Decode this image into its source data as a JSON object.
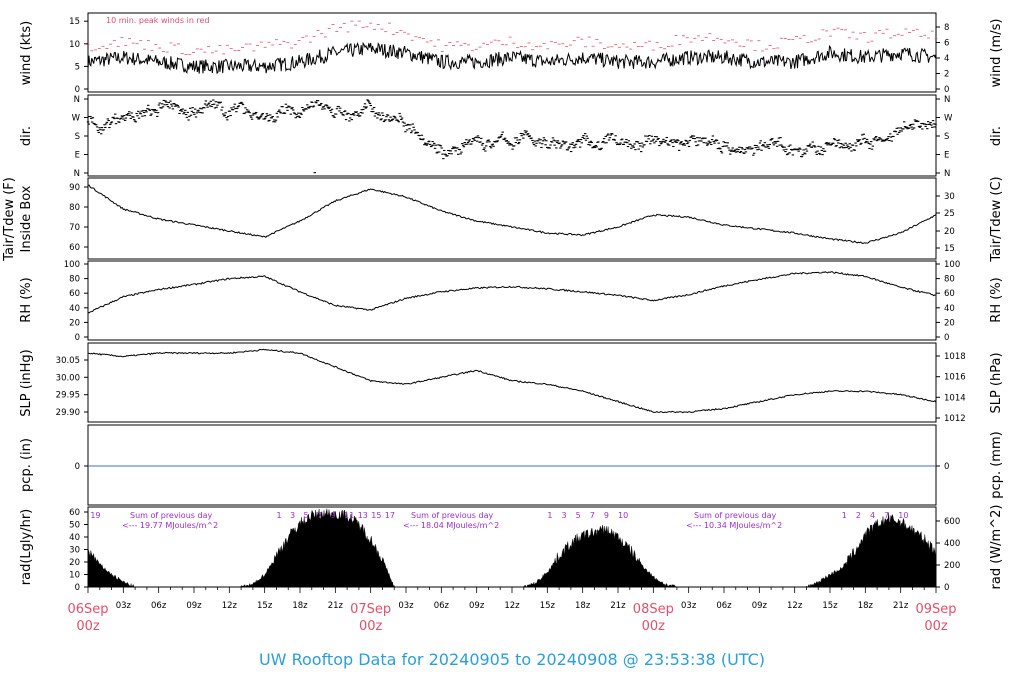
{
  "figure": {
    "title": "UW Rooftop Data for 20240905  to  20240908 @ 23:53:38  (UTC)",
    "title_color": "#2b9fd6",
    "date_color": "#e0506a",
    "purple": "#9a2fc7",
    "peak_color": "#e0506a",
    "pcp_color": "#3a6fd8"
  },
  "time_axis": {
    "hour_ticks": [
      "03z",
      "06z",
      "09z",
      "12z",
      "15z",
      "18z",
      "21z",
      "03z",
      "06z",
      "09z",
      "12z",
      "15z",
      "18z",
      "21z",
      "03z",
      "06z",
      "09z",
      "12z",
      "15z",
      "18z",
      "21z"
    ],
    "date_labels": [
      {
        "date": "06Sep",
        "z": "00z"
      },
      {
        "date": "07Sep",
        "z": "00z"
      },
      {
        "date": "08Sep",
        "z": "00z"
      },
      {
        "date": "09Sep",
        "z": "00z"
      }
    ]
  },
  "panels": {
    "wind": {
      "left_label": "wind (kts)",
      "right_label": "wind (m/s)",
      "annotation": "10 min. peak winds in red",
      "left_ticks": [
        "0",
        "5",
        "10",
        "15"
      ],
      "right_ticks": [
        "0",
        "2",
        "4",
        "6",
        "8"
      ]
    },
    "dir": {
      "left_label": "dir.",
      "right_label": "dir.",
      "left_ticks": [
        "N",
        "E",
        "S",
        "W",
        "N"
      ],
      "right_ticks": [
        "N",
        "E",
        "S",
        "W",
        "N"
      ]
    },
    "temp": {
      "left_label_1": "Tair/Tdew (F)",
      "left_label_2": "Inside Box",
      "right_label": "Tair/Tdew (C)",
      "left_ticks": [
        "60",
        "70",
        "80",
        "90"
      ],
      "right_ticks": [
        "15",
        "20",
        "25",
        "30"
      ]
    },
    "rh": {
      "left_label": "RH (%)",
      "right_label": "RH (%)",
      "left_ticks": [
        "0",
        "20",
        "40",
        "60",
        "80",
        "100"
      ],
      "right_ticks": [
        "0",
        "20",
        "40",
        "60",
        "80",
        "100"
      ]
    },
    "slp": {
      "left_label": "SLP (inHg)",
      "right_label": "SLP (hPa)",
      "left_ticks": [
        "29.90",
        "29.95",
        "30.00",
        "30.05"
      ],
      "right_ticks": [
        "1012",
        "1014",
        "1016",
        "1018"
      ]
    },
    "pcp": {
      "left_label": "pcp. (in)",
      "right_label": "pcp. (mm)",
      "left_ticks": [
        "0"
      ],
      "right_ticks": [
        "0"
      ]
    },
    "rad": {
      "left_label": "rad(Lgly/hr)",
      "right_label": "rad (W/m^2)",
      "left_ticks": [
        "0",
        "10",
        "20",
        "30",
        "40",
        "50",
        "60"
      ],
      "right_ticks": [
        "0",
        "200",
        "400",
        "600"
      ],
      "sums": [
        {
          "title": "Sum of previous day",
          "value": "<--- 19.77 MJoules/m^2"
        },
        {
          "title": "Sum of previous day",
          "value": "<--- 18.04 MJoules/m^2"
        },
        {
          "title": "Sum of previous day",
          "value": "<--- 10.34 MJoules/m^2"
        }
      ],
      "hour_labels": [
        [
          "19"
        ],
        [
          "1",
          "3",
          "5",
          "7",
          "9",
          "11",
          "13",
          "15",
          "17"
        ],
        [
          "1",
          "3",
          "5",
          "7",
          "9",
          "10"
        ],
        [
          "1",
          "2",
          "4",
          "7",
          "10"
        ]
      ]
    }
  },
  "chart_data": {
    "type": "line",
    "title": "UW Rooftop Data for 20240905  to  20240908 @ 23:53:38  (UTC)",
    "x_unit": "hours since 06Sep 00z",
    "xlim": [
      0,
      72
    ],
    "grid": false,
    "series": [
      {
        "panel": "wind",
        "ylabel": "wind (kts)",
        "ylim": [
          0,
          17
        ],
        "x": [
          0,
          3,
          6,
          9,
          12,
          15,
          18,
          21,
          24,
          27,
          30,
          33,
          36,
          39,
          42,
          45,
          48,
          51,
          54,
          57,
          60,
          63,
          66,
          69,
          72
        ],
        "values": [
          6,
          7,
          6,
          5,
          5,
          5,
          6,
          8,
          9,
          8,
          6,
          6,
          7,
          6,
          7,
          6,
          6,
          7,
          7,
          6,
          6,
          8,
          7,
          8,
          7
        ]
      },
      {
        "panel": "wind",
        "name": "10 min. peak winds in red",
        "ylabel": "wind (kts)",
        "x": [
          0,
          3,
          6,
          9,
          12,
          15,
          18,
          21,
          24,
          27,
          30,
          33,
          36,
          39,
          42,
          45,
          48,
          51,
          54,
          57,
          60,
          63,
          66,
          69,
          72
        ],
        "values": [
          9,
          10,
          9,
          8,
          8,
          9,
          10,
          13,
          14,
          12,
          9,
          9,
          10,
          9,
          10,
          9,
          9,
          11,
          11,
          9,
          10,
          12,
          11,
          12,
          11
        ]
      },
      {
        "panel": "temp",
        "ylabel": "Tair/Tdew (F)",
        "ylim": [
          55,
          95
        ],
        "x": [
          0,
          3,
          6,
          9,
          12,
          15,
          18,
          21,
          24,
          27,
          30,
          33,
          36,
          39,
          42,
          45,
          48,
          51,
          54,
          57,
          60,
          63,
          66,
          69,
          72
        ],
        "values": [
          91,
          79,
          74,
          71,
          68,
          65,
          73,
          83,
          89,
          85,
          78,
          73,
          70,
          67,
          66,
          70,
          76,
          75,
          71,
          69,
          67,
          64,
          62,
          67,
          76
        ]
      },
      {
        "panel": "rh",
        "ylabel": "RH (%)",
        "ylim": [
          0,
          100
        ],
        "x": [
          0,
          3,
          6,
          9,
          12,
          15,
          18,
          21,
          24,
          27,
          30,
          33,
          36,
          39,
          42,
          45,
          48,
          51,
          54,
          57,
          60,
          63,
          66,
          69,
          72
        ],
        "values": [
          33,
          55,
          65,
          72,
          80,
          83,
          62,
          43,
          37,
          53,
          62,
          67,
          69,
          66,
          62,
          57,
          50,
          58,
          70,
          79,
          87,
          89,
          83,
          68,
          57
        ]
      },
      {
        "panel": "slp",
        "ylabel": "SLP (inHg)",
        "ylim": [
          29.87,
          30.09
        ],
        "x": [
          0,
          3,
          6,
          9,
          12,
          15,
          18,
          21,
          24,
          27,
          30,
          33,
          36,
          39,
          42,
          45,
          48,
          51,
          54,
          57,
          60,
          63,
          66,
          69,
          72
        ],
        "values": [
          30.07,
          30.06,
          30.07,
          30.07,
          30.07,
          30.08,
          30.07,
          30.03,
          29.99,
          29.98,
          30.0,
          30.02,
          29.99,
          29.98,
          29.96,
          29.93,
          29.9,
          29.9,
          29.91,
          29.93,
          29.95,
          29.96,
          29.96,
          29.95,
          29.93
        ]
      },
      {
        "panel": "pcp",
        "ylabel": "pcp. (in)",
        "x": [
          0,
          72
        ],
        "values": [
          0,
          0
        ]
      },
      {
        "panel": "rad",
        "ylabel": "rad(Lgly/hr)",
        "ylim": [
          0,
          60
        ],
        "x": [
          0,
          1,
          2,
          3,
          4,
          13,
          14,
          15,
          16,
          17,
          18,
          19,
          20,
          21,
          22,
          23,
          24,
          25,
          26,
          37,
          38,
          39,
          40,
          41,
          42,
          43,
          44,
          45,
          46,
          47,
          48,
          49,
          50,
          61,
          62,
          63,
          64,
          65,
          66,
          67,
          68,
          69,
          70,
          71,
          72
        ],
        "values": [
          29,
          18,
          10,
          4,
          0,
          0,
          2,
          10,
          25,
          40,
          51,
          57,
          59,
          59,
          57,
          50,
          38,
          22,
          0,
          0,
          3,
          12,
          25,
          35,
          41,
          44,
          46,
          40,
          30,
          18,
          8,
          2,
          0,
          0,
          4,
          10,
          15,
          27,
          42,
          50,
          55,
          52,
          46,
          38,
          29
        ]
      }
    ]
  }
}
